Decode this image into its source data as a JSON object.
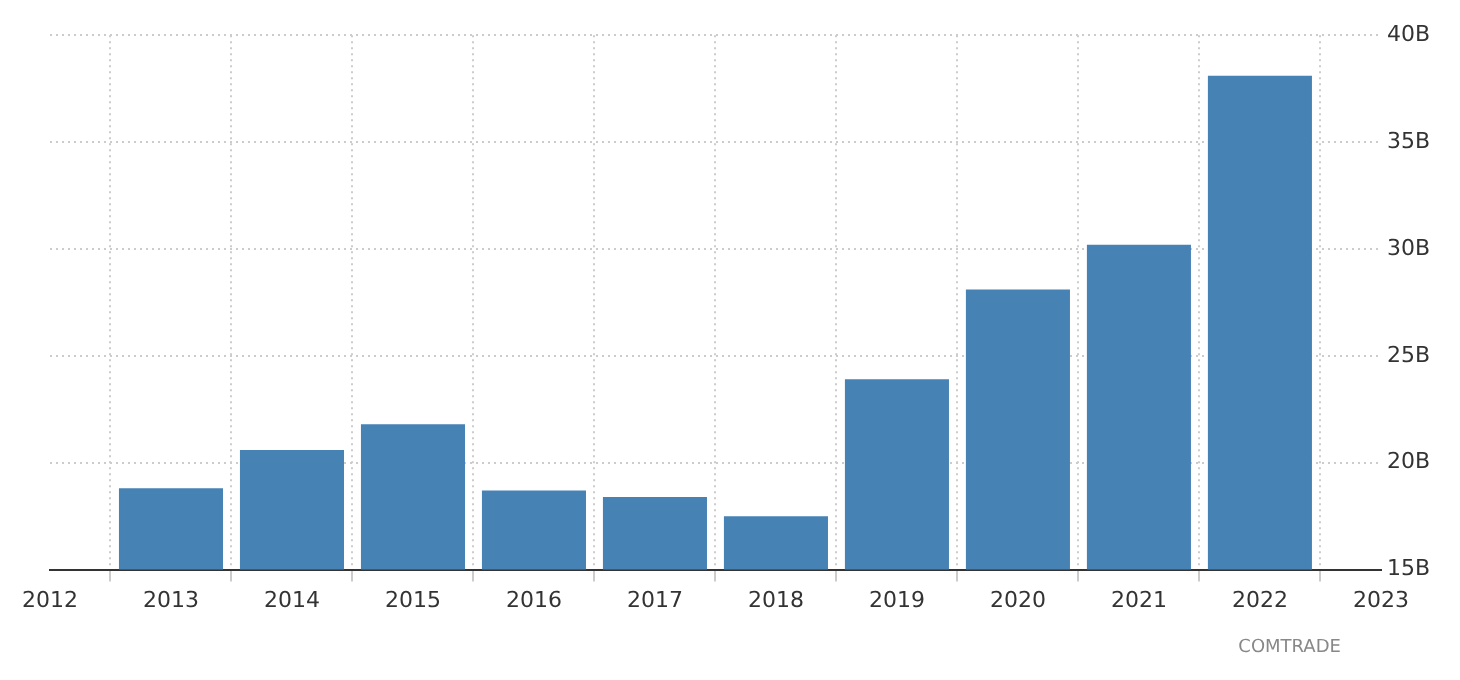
{
  "chart_data": {
    "type": "bar",
    "x": [
      2013,
      2014,
      2015,
      2016,
      2017,
      2018,
      2019,
      2020,
      2021,
      2022
    ],
    "values": [
      18.8,
      20.6,
      21.8,
      18.7,
      18.4,
      17.5,
      23.9,
      28.1,
      30.2,
      38.1
    ],
    "color": "#4682b4",
    "xlim": [
      2012,
      2023
    ],
    "xticks": [
      2012,
      2013,
      2014,
      2015,
      2016,
      2017,
      2018,
      2019,
      2020,
      2021,
      2022,
      2023
    ],
    "ylim": [
      15,
      40
    ],
    "yticks": [
      {
        "value": 15,
        "label": "15B"
      },
      {
        "value": 20,
        "label": "20B"
      },
      {
        "value": 25,
        "label": "25B"
      },
      {
        "value": 30,
        "label": "30B"
      },
      {
        "value": 35,
        "label": "35B"
      },
      {
        "value": 40,
        "label": "40B"
      }
    ],
    "grid": true,
    "legend": false,
    "annotations": [
      "COMTRADE"
    ]
  }
}
